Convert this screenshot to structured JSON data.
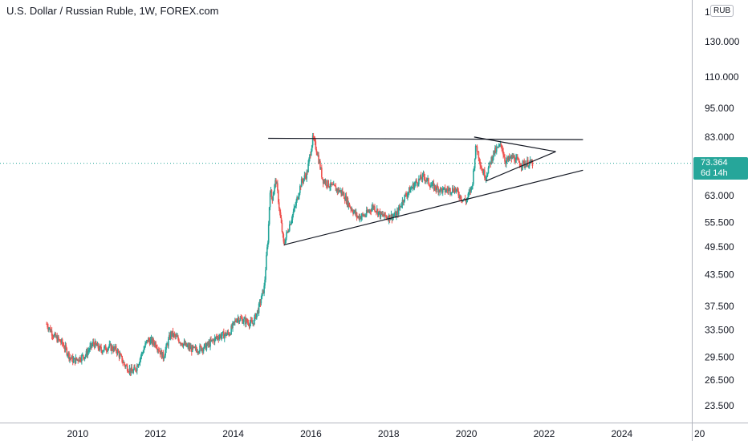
{
  "title": "U.S. Dollar / Russian Ruble, 1W, FOREX.com",
  "currency_badge": "RUB",
  "top_partial_label": "1",
  "last_price": {
    "value": "73.364",
    "countdown": "6d 14h"
  },
  "colors": {
    "up": "#26a69a",
    "down": "#ef5350",
    "grid": "#e0e3eb",
    "trend": "#131722",
    "last_line": "#26a69a"
  },
  "chart_data": {
    "type": "candlestick",
    "title": "U.S. Dollar / Russian Ruble, 1W, FOREX.com",
    "y_scale": "log",
    "ylim": [
      21.7,
      158
    ],
    "xlim": [
      2008.0,
      2025.8
    ],
    "y_ticks": [
      "130.000",
      "110.000",
      "95.000",
      "83.000",
      "63.000",
      "55.500",
      "49.500",
      "43.500",
      "37.500",
      "33.500",
      "29.500",
      "26.500",
      "23.500"
    ],
    "x_ticks": [
      "2010",
      "2012",
      "2014",
      "2016",
      "2018",
      "2020",
      "2022",
      "2024",
      "20"
    ],
    "series_path": [
      [
        2009.2,
        34.5
      ],
      [
        2009.4,
        32.5
      ],
      [
        2009.6,
        31.5
      ],
      [
        2009.8,
        29.5
      ],
      [
        2009.9,
        29.0
      ],
      [
        2010.2,
        29.8
      ],
      [
        2010.4,
        31.5
      ],
      [
        2010.6,
        30.5
      ],
      [
        2010.8,
        31.0
      ],
      [
        2011.0,
        30.5
      ],
      [
        2011.2,
        28.5
      ],
      [
        2011.4,
        27.5
      ],
      [
        2011.5,
        28.0
      ],
      [
        2011.8,
        32.0
      ],
      [
        2012.0,
        31.5
      ],
      [
        2012.2,
        29.5
      ],
      [
        2012.4,
        33.0
      ],
      [
        2012.6,
        32.0
      ],
      [
        2012.8,
        31.0
      ],
      [
        2013.0,
        30.5
      ],
      [
        2013.3,
        31.0
      ],
      [
        2013.6,
        32.5
      ],
      [
        2013.9,
        33.0
      ],
      [
        2014.1,
        35.5
      ],
      [
        2014.3,
        35.0
      ],
      [
        2014.5,
        34.5
      ],
      [
        2014.65,
        37.0
      ],
      [
        2014.8,
        41.0
      ],
      [
        2014.9,
        52.0
      ],
      [
        2014.95,
        65.0
      ],
      [
        2015.0,
        62.0
      ],
      [
        2015.1,
        68.0
      ],
      [
        2015.2,
        58.0
      ],
      [
        2015.3,
        50.0
      ],
      [
        2015.45,
        55.0
      ],
      [
        2015.6,
        60.0
      ],
      [
        2015.75,
        67.0
      ],
      [
        2015.9,
        70.0
      ],
      [
        2016.05,
        82.5
      ],
      [
        2016.15,
        78.0
      ],
      [
        2016.3,
        68.0
      ],
      [
        2016.5,
        66.0
      ],
      [
        2016.8,
        64.0
      ],
      [
        2017.0,
        60.0
      ],
      [
        2017.2,
        57.0
      ],
      [
        2017.4,
        57.5
      ],
      [
        2017.6,
        60.0
      ],
      [
        2017.8,
        57.5
      ],
      [
        2018.0,
        57.0
      ],
      [
        2018.2,
        57.5
      ],
      [
        2018.4,
        62.5
      ],
      [
        2018.7,
        67.0
      ],
      [
        2018.9,
        69.0
      ],
      [
        2019.1,
        66.0
      ],
      [
        2019.4,
        64.5
      ],
      [
        2019.7,
        65.0
      ],
      [
        2019.9,
        62.0
      ],
      [
        2020.0,
        61.5
      ],
      [
        2020.15,
        66.0
      ],
      [
        2020.25,
        80.0
      ],
      [
        2020.4,
        71.0
      ],
      [
        2020.5,
        69.0
      ],
      [
        2020.7,
        77.0
      ],
      [
        2020.9,
        80.0
      ],
      [
        2021.0,
        74.0
      ],
      [
        2021.2,
        75.5
      ],
      [
        2021.4,
        73.0
      ],
      [
        2021.6,
        73.5
      ],
      [
        2021.7,
        73.36
      ]
    ],
    "annotations": {
      "horizontal_resistance": [
        [
          2014.9,
          82.5
        ],
        [
          2023.0,
          82.0
        ]
      ],
      "rising_support": [
        [
          2015.3,
          50.0
        ],
        [
          2023.0,
          71.0
        ]
      ],
      "triangle_upper": [
        [
          2020.2,
          83.0
        ],
        [
          2022.3,
          77.5
        ]
      ],
      "triangle_lower": [
        [
          2020.5,
          67.5
        ],
        [
          2022.3,
          77.5
        ]
      ]
    },
    "last_value": 73.364
  }
}
